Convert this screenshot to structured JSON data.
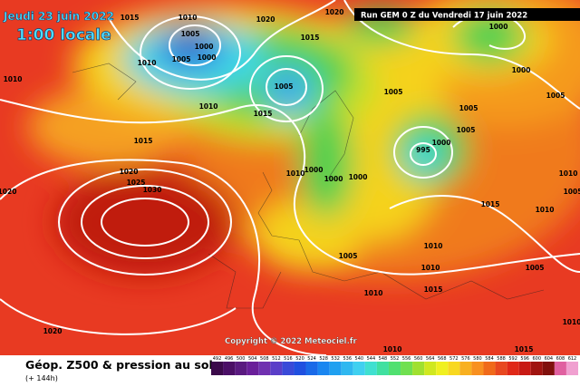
{
  "header": {
    "date": "Jeudi 23 juin 2022",
    "time": "1:00 locale",
    "run": "Run GEM 0 Z du Vendredi 17 juin 2022"
  },
  "copyright": "Copyright © 2022 Meteociel.fr",
  "footer": {
    "title": "Géop. Z500 & pression au sol",
    "lead": "(+ 144h)"
  },
  "isobar_labels": [
    1015,
    1010,
    1020,
    1020,
    1005,
    1000,
    1005,
    1000,
    1010,
    1015,
    1005,
    1010,
    1010,
    1015,
    1015,
    1020,
    1025,
    1030,
    1020,
    1010,
    1000,
    1000,
    1000,
    995,
    1000,
    1005,
    1005,
    1005,
    1000,
    1005,
    1000,
    1010,
    1005,
    1015,
    1010,
    1010,
    1005,
    1010,
    1005,
    1010,
    1015,
    1010,
    1020,
    1010,
    1015
  ],
  "color_scale": {
    "labels": [
      492,
      496,
      500,
      504,
      508,
      512,
      516,
      520,
      524,
      528,
      532,
      536,
      540,
      544,
      548,
      552,
      556,
      560,
      564,
      568,
      572,
      576,
      580,
      584,
      588,
      592,
      596,
      600,
      604,
      608,
      612
    ],
    "colors": [
      "#3b0a4a",
      "#4b0f66",
      "#5a1a80",
      "#6a1f9a",
      "#7030b0",
      "#5a3ec8",
      "#3a4ad8",
      "#2050e0",
      "#1a6ae8",
      "#1a86f0",
      "#20a0f0",
      "#30b8f0",
      "#40d0f0",
      "#40e0d0",
      "#40e0a0",
      "#50e070",
      "#70e050",
      "#a0e030",
      "#d0e820",
      "#f0f020",
      "#f8d820",
      "#f8b020",
      "#f89020",
      "#f06a1a",
      "#e84820",
      "#e02818",
      "#c81a14",
      "#a01410",
      "#80100c",
      "#e060a0",
      "#f0a0d0"
    ]
  }
}
